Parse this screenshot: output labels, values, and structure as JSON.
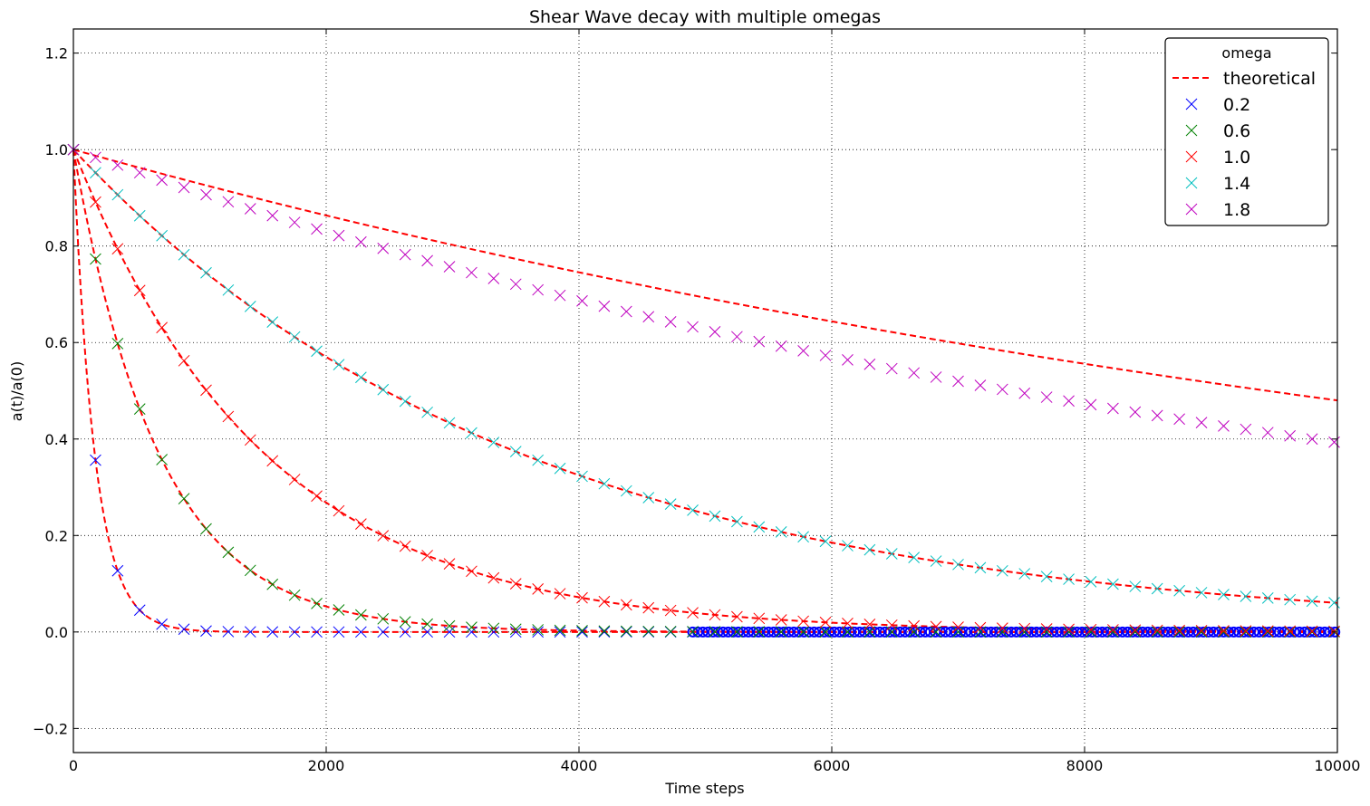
{
  "chart_data": {
    "type": "line",
    "title": "Shear Wave decay with multiple omegas",
    "xlabel": "Time steps",
    "ylabel": "a(t)/a(0)",
    "xlim": [
      0,
      10000
    ],
    "ylim": [
      -0.25,
      1.25
    ],
    "xticks": [
      0,
      2000,
      4000,
      6000,
      8000,
      10000
    ],
    "xtick_labels": [
      "0",
      "2000",
      "4000",
      "6000",
      "8000",
      "10000"
    ],
    "yticks": [
      -0.2,
      0.0,
      0.2,
      0.4,
      0.6,
      0.8,
      1.0,
      1.2
    ],
    "ytick_labels": [
      "−0.2",
      "0.0",
      "0.2",
      "0.4",
      "0.6",
      "0.8",
      "1.0",
      "1.2"
    ],
    "grid": true,
    "legend": {
      "title": "omega",
      "placement": "top-right",
      "theoretical_label": "theoretical"
    },
    "theoretical_color": "#ff0000",
    "series": [
      {
        "name": "0.2",
        "color": "#0000ff",
        "omega": 0.2,
        "decay_rate": 0.0059,
        "marker_interval": 175,
        "dense_from": 4900,
        "dense_interval": 40,
        "dense_marker": "circle",
        "points": [
          [
            0,
            1.0
          ],
          [
            175,
            0.355
          ],
          [
            350,
            0.127
          ],
          [
            525,
            0.045
          ],
          [
            700,
            0.016
          ],
          [
            875,
            0.006
          ],
          [
            1050,
            0.002
          ],
          [
            1225,
            0.001
          ]
        ]
      },
      {
        "name": "0.6",
        "color": "#008000",
        "omega": 0.6,
        "decay_rate": 0.00147,
        "marker_interval": 175,
        "points": [
          [
            0,
            1.0
          ],
          [
            175,
            0.773
          ],
          [
            350,
            0.597
          ],
          [
            525,
            0.462
          ],
          [
            700,
            0.357
          ],
          [
            875,
            0.276
          ],
          [
            1050,
            0.213
          ],
          [
            1225,
            0.165
          ],
          [
            1400,
            0.128
          ],
          [
            1575,
            0.099
          ],
          [
            1750,
            0.076
          ],
          [
            1925,
            0.059
          ],
          [
            2100,
            0.046
          ],
          [
            2275,
            0.035
          ],
          [
            2450,
            0.027
          ],
          [
            2625,
            0.021
          ],
          [
            2800,
            0.016
          ],
          [
            2975,
            0.013
          ]
        ]
      },
      {
        "name": "1.0",
        "color": "#ff0000",
        "omega": 1.0,
        "decay_rate": 0.000658,
        "marker_interval": 175,
        "points": [
          [
            0,
            1.0
          ],
          [
            175,
            0.891
          ],
          [
            350,
            0.794
          ],
          [
            525,
            0.708
          ],
          [
            700,
            0.631
          ],
          [
            875,
            0.562
          ],
          [
            1050,
            0.501
          ],
          [
            1225,
            0.447
          ],
          [
            1400,
            0.398
          ],
          [
            1575,
            0.355
          ],
          [
            1750,
            0.316
          ],
          [
            1925,
            0.282
          ],
          [
            2100,
            0.251
          ],
          [
            2275,
            0.224
          ],
          [
            2450,
            0.2
          ],
          [
            2625,
            0.178
          ],
          [
            2800,
            0.158
          ],
          [
            2975,
            0.141
          ],
          [
            3150,
            0.126
          ],
          [
            3325,
            0.112
          ],
          [
            3500,
            0.1
          ]
        ]
      },
      {
        "name": "1.4",
        "color": "#00bfbf",
        "omega": 1.4,
        "decay_rate": 0.000281,
        "marker_interval": 175,
        "points": [
          [
            0,
            1.0
          ],
          [
            175,
            0.952
          ],
          [
            350,
            0.906
          ],
          [
            525,
            0.863
          ],
          [
            700,
            0.822
          ],
          [
            875,
            0.782
          ],
          [
            1050,
            0.745
          ],
          [
            1225,
            0.709
          ],
          [
            1400,
            0.675
          ],
          [
            1575,
            0.643
          ],
          [
            1750,
            0.612
          ],
          [
            1925,
            0.582
          ],
          [
            2100,
            0.554
          ],
          [
            2275,
            0.528
          ],
          [
            2450,
            0.502
          ],
          [
            2625,
            0.478
          ],
          [
            2800,
            0.455
          ],
          [
            2975,
            0.433
          ],
          [
            3150,
            0.412
          ],
          [
            3325,
            0.393
          ],
          [
            3500,
            0.374
          ]
        ]
      },
      {
        "name": "1.8",
        "color": "#bf00bf",
        "omega": 1.8,
        "decay_rate": 7.34e-05,
        "sim_decay_rate": 9.35e-05,
        "marker_interval": 175,
        "points": [
          [
            0,
            1.0
          ],
          [
            175,
            0.984
          ],
          [
            350,
            0.968
          ],
          [
            525,
            0.952
          ],
          [
            700,
            0.937
          ],
          [
            875,
            0.922
          ],
          [
            1050,
            0.907
          ],
          [
            1225,
            0.892
          ],
          [
            1400,
            0.877
          ],
          [
            1575,
            0.863
          ],
          [
            1750,
            0.849
          ],
          [
            1925,
            0.835
          ],
          [
            2100,
            0.822
          ],
          [
            2275,
            0.809
          ],
          [
            2450,
            0.796
          ],
          [
            2625,
            0.783
          ],
          [
            2800,
            0.77
          ],
          [
            2975,
            0.757
          ],
          [
            3150,
            0.745
          ],
          [
            3325,
            0.733
          ],
          [
            3500,
            0.721
          ]
        ]
      }
    ]
  }
}
